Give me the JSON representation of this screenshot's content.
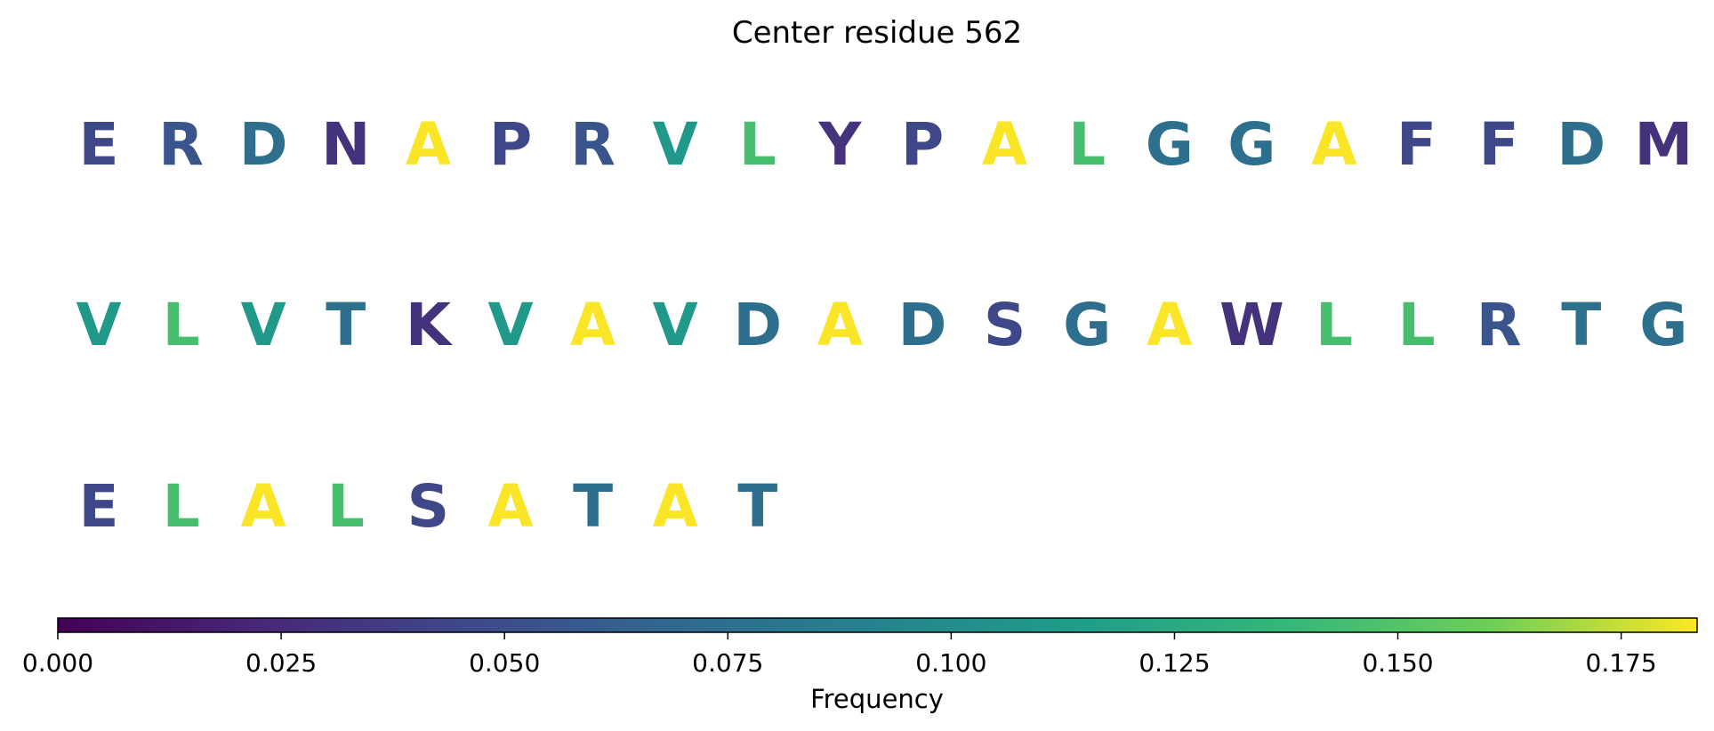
{
  "chart_data": {
    "type": "sequence-logo",
    "title": "Center residue 562",
    "rows": [
      {
        "residues": [
          {
            "letter": "E",
            "frequency": 0.045
          },
          {
            "letter": "R",
            "frequency": 0.055
          },
          {
            "letter": "D",
            "frequency": 0.075
          },
          {
            "letter": "N",
            "frequency": 0.03
          },
          {
            "letter": "A",
            "frequency": 0.183
          },
          {
            "letter": "P",
            "frequency": 0.045
          },
          {
            "letter": "R",
            "frequency": 0.055
          },
          {
            "letter": "V",
            "frequency": 0.11
          },
          {
            "letter": "L",
            "frequency": 0.145
          },
          {
            "letter": "Y",
            "frequency": 0.03
          },
          {
            "letter": "P",
            "frequency": 0.045
          },
          {
            "letter": "A",
            "frequency": 0.183
          },
          {
            "letter": "L",
            "frequency": 0.145
          },
          {
            "letter": "G",
            "frequency": 0.075
          },
          {
            "letter": "G",
            "frequency": 0.075
          },
          {
            "letter": "A",
            "frequency": 0.183
          },
          {
            "letter": "F",
            "frequency": 0.045
          },
          {
            "letter": "F",
            "frequency": 0.045
          },
          {
            "letter": "D",
            "frequency": 0.075
          },
          {
            "letter": "M",
            "frequency": 0.03
          }
        ]
      },
      {
        "residues": [
          {
            "letter": "V",
            "frequency": 0.11
          },
          {
            "letter": "L",
            "frequency": 0.145
          },
          {
            "letter": "V",
            "frequency": 0.11
          },
          {
            "letter": "T",
            "frequency": 0.075
          },
          {
            "letter": "K",
            "frequency": 0.03
          },
          {
            "letter": "V",
            "frequency": 0.11
          },
          {
            "letter": "A",
            "frequency": 0.183
          },
          {
            "letter": "V",
            "frequency": 0.11
          },
          {
            "letter": "D",
            "frequency": 0.075
          },
          {
            "letter": "A",
            "frequency": 0.183
          },
          {
            "letter": "D",
            "frequency": 0.075
          },
          {
            "letter": "S",
            "frequency": 0.045
          },
          {
            "letter": "G",
            "frequency": 0.075
          },
          {
            "letter": "A",
            "frequency": 0.183
          },
          {
            "letter": "W",
            "frequency": 0.03
          },
          {
            "letter": "L",
            "frequency": 0.145
          },
          {
            "letter": "L",
            "frequency": 0.145
          },
          {
            "letter": "R",
            "frequency": 0.055
          },
          {
            "letter": "T",
            "frequency": 0.075
          },
          {
            "letter": "G",
            "frequency": 0.075
          }
        ]
      },
      {
        "residues": [
          {
            "letter": "E",
            "frequency": 0.045
          },
          {
            "letter": "L",
            "frequency": 0.145
          },
          {
            "letter": "A",
            "frequency": 0.183
          },
          {
            "letter": "L",
            "frequency": 0.145
          },
          {
            "letter": "S",
            "frequency": 0.045
          },
          {
            "letter": "A",
            "frequency": 0.183
          },
          {
            "letter": "T",
            "frequency": 0.075
          },
          {
            "letter": "A",
            "frequency": 0.183
          },
          {
            "letter": "T",
            "frequency": 0.075
          }
        ]
      }
    ],
    "colorbar": {
      "label": "Frequency",
      "colormap": "viridis",
      "range": [
        0,
        0.1835
      ],
      "ticks": [
        0.0,
        0.025,
        0.05,
        0.075,
        0.1,
        0.125,
        0.15,
        0.175
      ],
      "tick_labels": [
        "0.000",
        "0.025",
        "0.050",
        "0.075",
        "0.100",
        "0.125",
        "0.150",
        "0.175"
      ],
      "placement": "bottom"
    }
  }
}
